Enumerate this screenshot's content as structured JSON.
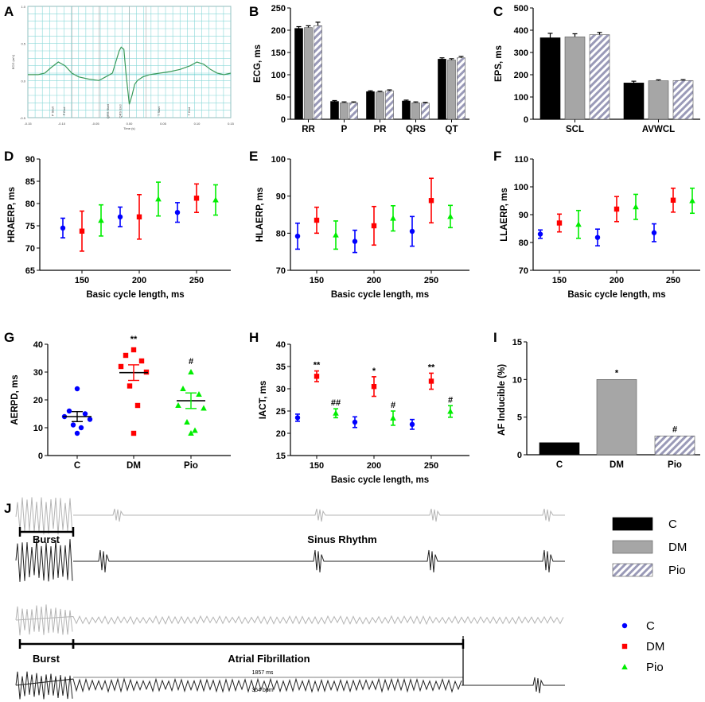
{
  "panel_labels": [
    "A",
    "B",
    "C",
    "D",
    "E",
    "F",
    "G",
    "H",
    "I",
    "J"
  ],
  "colors": {
    "C": "#0000ff",
    "DM": "#ff0000",
    "Pio": "#00ee00",
    "grid": "#88d8d8",
    "ecg_trace": "#3a9a5a",
    "bar_C": "#000000",
    "bar_DM": "#a6a6a6",
    "bar_Pio": "#9a9ab8",
    "trace_gray": "#b4b4b4",
    "trace_black": "#222222"
  },
  "chart_data": [
    {
      "panel": "A",
      "type": "line",
      "title": "",
      "xlabel": "Time (s)",
      "ylabel": "ECG (mV)",
      "x_ticks": [
        "-0.15",
        "-0.10",
        "-0.05",
        "0.00",
        "0.05",
        "0.10",
        "0.15"
      ],
      "y_ticks": [
        "1.0",
        "0.5",
        "0.0",
        "-0.5"
      ],
      "xlim": [
        -0.15,
        0.15
      ],
      "ylim": [
        -0.5,
        1.0
      ],
      "x": [
        -0.15,
        -0.135,
        -0.125,
        -0.115,
        -0.105,
        -0.095,
        -0.085,
        -0.075,
        -0.06,
        -0.045,
        -0.035,
        -0.025,
        -0.02,
        -0.015,
        -0.012,
        -0.008,
        -0.005,
        -0.002,
        0.0,
        0.004,
        0.008,
        0.012,
        0.02,
        0.03,
        0.045,
        0.06,
        0.075,
        0.09,
        0.1,
        0.11,
        0.12,
        0.13,
        0.14,
        0.15
      ],
      "y": [
        0.08,
        0.08,
        0.1,
        0.18,
        0.25,
        0.2,
        0.1,
        0.05,
        0.02,
        0.0,
        0.05,
        0.1,
        0.25,
        0.4,
        0.45,
        0.42,
        0.1,
        -0.15,
        -0.32,
        -0.2,
        -0.05,
        0.0,
        0.05,
        0.08,
        0.1,
        0.12,
        0.15,
        0.2,
        0.25,
        0.22,
        0.15,
        0.1,
        0.08,
        0.1
      ],
      "ann": [
        "P Start",
        "P End",
        "QRS Start",
        "QRS End",
        "T Start",
        "T End"
      ]
    },
    {
      "panel": "B",
      "type": "bar",
      "ylabel": "ECG, ms",
      "ylim": [
        0,
        250
      ],
      "y_ticks": [
        "0",
        "50",
        "100",
        "150",
        "200",
        "250"
      ],
      "categories": [
        "RR",
        "P",
        "PR",
        "QRS",
        "QT"
      ],
      "series": [
        {
          "name": "C",
          "values": [
            204,
            40,
            62,
            41,
            135
          ],
          "err": [
            4,
            2,
            2,
            2,
            3
          ]
        },
        {
          "name": "DM",
          "values": [
            206,
            37,
            61,
            37,
            133
          ],
          "err": [
            4,
            2,
            2,
            2,
            3
          ]
        },
        {
          "name": "Pio",
          "values": [
            210,
            37,
            64,
            36,
            138
          ],
          "err": [
            8,
            2,
            2,
            2,
            3
          ]
        }
      ]
    },
    {
      "panel": "C",
      "type": "bar",
      "ylabel": "EPS, ms",
      "ylim": [
        0,
        500
      ],
      "y_ticks": [
        "0",
        "100",
        "200",
        "300",
        "400",
        "500"
      ],
      "categories": [
        "SCL",
        "AVWCL"
      ],
      "series": [
        {
          "name": "C",
          "values": [
            366,
            163
          ],
          "err": [
            20,
            8
          ]
        },
        {
          "name": "DM",
          "values": [
            370,
            173
          ],
          "err": [
            14,
            4
          ]
        },
        {
          "name": "Pio",
          "values": [
            380,
            174
          ],
          "err": [
            10,
            4
          ]
        }
      ]
    },
    {
      "panel": "D",
      "type": "scatter",
      "xlabel": "Basic cycle length, ms",
      "ylabel": "HRAERP, ms",
      "ylim": [
        65,
        90
      ],
      "y_ticks": [
        "65",
        "70",
        "75",
        "80",
        "85",
        "90"
      ],
      "x_ticks": [
        "150",
        "200",
        "250"
      ],
      "categories": [
        "150",
        "200",
        "250"
      ],
      "series": [
        {
          "name": "C",
          "values": [
            74.5,
            77,
            78
          ],
          "err": [
            2.2,
            2.2,
            2.2
          ]
        },
        {
          "name": "DM",
          "values": [
            73.8,
            77,
            81.2
          ],
          "err": [
            4.5,
            5,
            3.2
          ]
        },
        {
          "name": "Pio",
          "values": [
            76.2,
            81,
            80.8
          ],
          "err": [
            3.5,
            3.8,
            3.4
          ]
        }
      ]
    },
    {
      "panel": "E",
      "type": "scatter",
      "xlabel": "Basic cycle length, ms",
      "ylabel": "HLAERP, ms",
      "ylim": [
        70,
        100
      ],
      "y_ticks": [
        "70",
        "80",
        "90",
        "100"
      ],
      "x_ticks": [
        "150",
        "200",
        "250"
      ],
      "categories": [
        "150",
        "200",
        "250"
      ],
      "series": [
        {
          "name": "C",
          "values": [
            79.2,
            77.8,
            80.5
          ],
          "err": [
            3.5,
            3,
            4
          ]
        },
        {
          "name": "DM",
          "values": [
            83.5,
            82,
            88.8
          ],
          "err": [
            3.5,
            5.2,
            6
          ]
        },
        {
          "name": "Pio",
          "values": [
            79.5,
            84,
            84.5
          ],
          "err": [
            3.8,
            3.4,
            3
          ]
        }
      ]
    },
    {
      "panel": "F",
      "type": "scatter",
      "xlabel": "Basic cycle length, ms",
      "ylabel": "LLAERP, ms",
      "ylim": [
        70,
        110
      ],
      "y_ticks": [
        "70",
        "80",
        "90",
        "100",
        "110"
      ],
      "x_ticks": [
        "150",
        "200",
        "250"
      ],
      "categories": [
        "150",
        "200",
        "250"
      ],
      "series": [
        {
          "name": "C",
          "values": [
            83,
            81.8,
            83.5
          ],
          "err": [
            1.5,
            3,
            3.2
          ]
        },
        {
          "name": "DM",
          "values": [
            87,
            92,
            95.2
          ],
          "err": [
            3.2,
            4.5,
            4.3
          ]
        },
        {
          "name": "Pio",
          "values": [
            86.5,
            92.8,
            95
          ],
          "err": [
            5,
            4.5,
            4.5
          ]
        }
      ]
    },
    {
      "panel": "G",
      "type": "scatter",
      "ylabel": "AERPD, ms",
      "ylim": [
        0,
        40
      ],
      "y_ticks": [
        "0",
        "10",
        "20",
        "30",
        "40"
      ],
      "categories": [
        "C",
        "DM",
        "Pio"
      ],
      "means": [
        14,
        29.8,
        19.7
      ],
      "sem": [
        1.8,
        2.8,
        2.8
      ],
      "points": [
        [
          24,
          16,
          15,
          14,
          13,
          11,
          10,
          8
        ],
        [
          38,
          36,
          34,
          32,
          30,
          25,
          18,
          8
        ],
        [
          30,
          24,
          22,
          18,
          17,
          12,
          9,
          8
        ]
      ],
      "annotations": [
        "",
        "**",
        "#"
      ]
    },
    {
      "panel": "H",
      "type": "scatter",
      "xlabel": "Basic cycle length, ms",
      "ylabel": "IACT, ms",
      "ylim": [
        15,
        40
      ],
      "y_ticks": [
        "15",
        "20",
        "25",
        "30",
        "35",
        "40"
      ],
      "x_ticks": [
        "150",
        "200",
        "250"
      ],
      "categories": [
        "150",
        "200",
        "250"
      ],
      "series": [
        {
          "name": "C",
          "values": [
            23.5,
            22.5,
            22
          ],
          "err": [
            0.8,
            1.2,
            1.1
          ]
        },
        {
          "name": "DM",
          "values": [
            32.8,
            30.5,
            31.7
          ],
          "err": [
            1.2,
            2.2,
            1.8
          ]
        },
        {
          "name": "Pio",
          "values": [
            24.5,
            23.4,
            24.9
          ],
          "err": [
            1,
            1.6,
            1.3
          ]
        }
      ],
      "annotations": {
        "DM": [
          "**",
          "*",
          "**"
        ],
        "Pio": [
          "##",
          "#",
          "#"
        ]
      }
    },
    {
      "panel": "I",
      "type": "bar",
      "ylabel": "AF Inducible (%)",
      "ylim": [
        0,
        15
      ],
      "y_ticks": [
        "0",
        "5",
        "10",
        "15"
      ],
      "categories": [
        "C",
        "DM",
        "Pio"
      ],
      "values": [
        1.6,
        10,
        2.5
      ],
      "annotations": [
        "",
        "*",
        "#"
      ]
    }
  ],
  "legend_bar": [
    {
      "name": "C"
    },
    {
      "name": "DM"
    },
    {
      "name": "Pio"
    }
  ],
  "legend_scatter": [
    {
      "name": "C"
    },
    {
      "name": "DM"
    },
    {
      "name": "Pio"
    }
  ],
  "panel_j": {
    "burst_label_1": "Burst",
    "burst_label_2": "Burst",
    "sinus_label": "Sinus Rhythm",
    "af_label": "Atrial Fibrillation",
    "duration_label": "1857 ms",
    "bpm_label": "354 bpm"
  }
}
